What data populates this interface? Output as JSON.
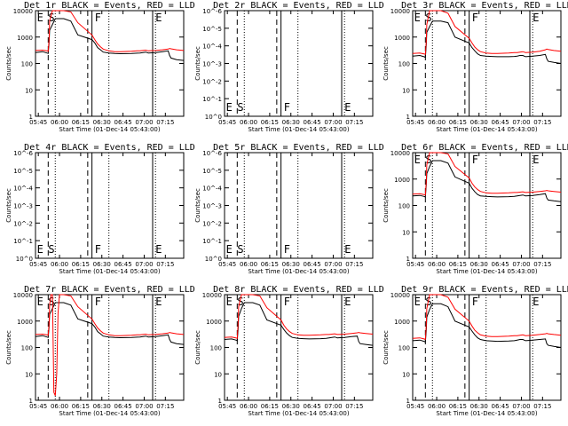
{
  "figure": {
    "start_time_label": "Start Time (01-Dec-14 05:43:00)",
    "ylabel": "Counts/sec",
    "x_ticks": [
      "05:45",
      "06:00",
      "06:15",
      "06:30",
      "06:45",
      "07:00",
      "07:15"
    ],
    "y_ticks": [
      "1",
      "10",
      "100",
      "1000",
      "10000"
    ],
    "y_ticks_empty": [
      "10^0",
      "10^-1",
      "10^-2",
      "10^-3",
      "10^-4",
      "10^-5",
      "10^-6"
    ],
    "colors": {
      "events": "#000000",
      "lld": "#ff0000",
      "background": "#ffffff"
    }
  },
  "chart_data": [
    {
      "id": "1r",
      "type": "line",
      "title": "Det 1r BLACK = Events, RED = LLD",
      "empty": false,
      "markers": [
        "E",
        "S",
        "F",
        "E"
      ],
      "xlabel": "Start Time (01-Dec-14 05:43:00)",
      "ylabel": "Counts/sec",
      "ylog": true,
      "series": [
        {
          "name": "Events",
          "color": "#000000",
          "x": [
            0,
            5,
            8,
            9,
            9.6,
            10,
            12,
            14,
            15,
            20,
            25,
            30,
            40,
            42,
            44,
            46,
            48,
            52,
            56,
            60,
            68,
            72,
            74,
            76,
            78,
            80,
            85,
            90,
            94,
            95,
            96,
            100,
            105
          ],
          "y": [
            260,
            280,
            250,
            240,
            600,
            1800,
            3000,
            5000,
            5000,
            5000,
            4000,
            1200,
            800,
            600,
            400,
            330,
            270,
            250,
            240,
            235,
            240,
            245,
            250,
            260,
            270,
            250,
            260,
            280,
            300,
            200,
            160,
            140,
            130
          ]
        },
        {
          "name": "LLD",
          "color": "#ff0000",
          "x": [
            0,
            5,
            8,
            9,
            9.6,
            10,
            12,
            14,
            15,
            20,
            25,
            30,
            40,
            42,
            44,
            46,
            48,
            52,
            56,
            60,
            68,
            72,
            74,
            76,
            78,
            80,
            85,
            90,
            94,
            95,
            96,
            100,
            105
          ],
          "y": [
            310,
            320,
            300,
            290,
            800,
            4000,
            10000,
            10000,
            10000,
            10000,
            9000,
            3500,
            1200,
            800,
            550,
            430,
            350,
            300,
            280,
            280,
            290,
            300,
            300,
            310,
            320,
            300,
            310,
            330,
            350,
            370,
            360,
            330,
            310
          ]
        }
      ]
    },
    {
      "id": "2r",
      "type": "line",
      "title": "Det 2r BLACK = Events, RED = LLD",
      "empty": true,
      "markers": [
        "E",
        "S",
        "F",
        "E"
      ],
      "xlabel": "Start Time (01-Dec-14 05:43:00)",
      "ylabel": "Counts/sec",
      "ylog": true,
      "series": []
    },
    {
      "id": "3r",
      "type": "line",
      "title": "Det 3r BLACK = Events, RED = LLD",
      "empty": false,
      "markers": [
        "E",
        "S",
        "F",
        "E"
      ],
      "xlabel": "Start Time (01-Dec-14 05:43:00)",
      "ylabel": "Counts/sec",
      "ylog": true,
      "series": [
        {
          "name": "Events",
          "color": "#000000",
          "x": [
            0,
            5,
            8,
            9,
            9.6,
            10,
            12,
            14,
            15,
            20,
            25,
            30,
            40,
            42,
            44,
            46,
            48,
            52,
            56,
            60,
            68,
            72,
            74,
            76,
            78,
            80,
            85,
            90,
            94,
            95,
            96,
            100,
            105
          ],
          "y": [
            190,
            200,
            180,
            170,
            500,
            1500,
            2500,
            4000,
            4000,
            4000,
            3500,
            1000,
            600,
            400,
            300,
            230,
            200,
            190,
            185,
            180,
            180,
            185,
            190,
            200,
            200,
            180,
            190,
            200,
            220,
            150,
            120,
            110,
            100
          ]
        },
        {
          "name": "LLD",
          "color": "#ff0000",
          "x": [
            0,
            5,
            8,
            9,
            9.6,
            10,
            12,
            14,
            15,
            20,
            25,
            30,
            40,
            42,
            44,
            46,
            48,
            52,
            56,
            60,
            68,
            72,
            74,
            76,
            78,
            80,
            85,
            90,
            94,
            95,
            96,
            100,
            105
          ],
          "y": [
            240,
            250,
            230,
            220,
            700,
            3000,
            10000,
            10000,
            10000,
            10000,
            8000,
            2500,
            900,
            600,
            420,
            330,
            280,
            250,
            240,
            240,
            250,
            260,
            260,
            270,
            280,
            260,
            270,
            290,
            330,
            350,
            340,
            310,
            290
          ]
        }
      ]
    },
    {
      "id": "4r",
      "type": "line",
      "title": "Det 4r BLACK = Events, RED = LLD",
      "empty": true,
      "markers": [
        "E",
        "S",
        "F",
        "E"
      ],
      "xlabel": "Start Time (01-Dec-14 05:43:00)",
      "ylabel": "Counts/sec",
      "ylog": true,
      "series": []
    },
    {
      "id": "5r",
      "type": "line",
      "title": "Det 5r BLACK = Events, RED = LLD",
      "empty": true,
      "markers": [
        "E",
        "S",
        "F",
        "E"
      ],
      "xlabel": "Start Time (01-Dec-14 05:43:00)",
      "ylabel": "Counts/sec",
      "ylog": true,
      "series": []
    },
    {
      "id": "6r",
      "type": "line",
      "title": "Det 6r BLACK = Events, RED = LLD",
      "empty": false,
      "markers": [
        "E",
        "S",
        "F",
        "E"
      ],
      "xlabel": "Start Time (01-Dec-14 05:43:00)",
      "ylabel": "Counts/sec",
      "ylog": true,
      "series": [
        {
          "name": "Events",
          "color": "#000000",
          "x": [
            0,
            5,
            8,
            9,
            9.6,
            10,
            12,
            14,
            15,
            20,
            25,
            30,
            40,
            42,
            44,
            46,
            48,
            52,
            56,
            60,
            68,
            72,
            74,
            76,
            78,
            80,
            85,
            90,
            94,
            95,
            96,
            100,
            105
          ],
          "y": [
            230,
            240,
            220,
            210,
            600,
            1600,
            3000,
            5000,
            5000,
            5000,
            4000,
            1200,
            700,
            450,
            330,
            260,
            230,
            220,
            215,
            210,
            215,
            220,
            230,
            240,
            250,
            230,
            240,
            260,
            280,
            190,
            160,
            150,
            140
          ]
        },
        {
          "name": "LLD",
          "color": "#ff0000",
          "x": [
            0,
            5,
            8,
            9,
            9.6,
            10,
            12,
            14,
            15,
            20,
            25,
            30,
            40,
            42,
            44,
            46,
            48,
            52,
            56,
            60,
            68,
            72,
            74,
            76,
            78,
            80,
            85,
            90,
            94,
            95,
            96,
            100,
            105
          ],
          "y": [
            270,
            280,
            260,
            250,
            800,
            3500,
            10000,
            10000,
            10000,
            10000,
            9000,
            3000,
            1100,
            700,
            500,
            400,
            340,
            300,
            290,
            290,
            300,
            310,
            310,
            320,
            330,
            310,
            320,
            340,
            360,
            370,
            360,
            340,
            320
          ]
        }
      ]
    },
    {
      "id": "7r",
      "type": "line",
      "title": "Det 7r BLACK = Events, RED = LLD",
      "empty": false,
      "markers": [
        "E",
        "S",
        "F",
        "E"
      ],
      "xlabel": "Start Time (01-Dec-14 05:43:00)",
      "ylabel": "Counts/sec",
      "ylog": true,
      "series": [
        {
          "name": "Events",
          "color": "#000000",
          "x": [
            0,
            5,
            8,
            9,
            9.6,
            10,
            12,
            14,
            15,
            20,
            25,
            30,
            40,
            42,
            44,
            46,
            48,
            52,
            56,
            60,
            68,
            72,
            74,
            76,
            78,
            80,
            85,
            90,
            94,
            95,
            96,
            100,
            105
          ],
          "y": [
            260,
            280,
            250,
            240,
            600,
            1800,
            3000,
            5000,
            5000,
            5000,
            4000,
            1200,
            800,
            600,
            400,
            330,
            270,
            250,
            240,
            235,
            240,
            245,
            250,
            260,
            270,
            250,
            260,
            280,
            300,
            200,
            160,
            140,
            130
          ]
        },
        {
          "name": "LLD",
          "color": "#ff0000",
          "x": [
            0,
            5,
            8,
            9,
            9.6,
            10,
            11,
            12,
            13,
            14,
            15,
            16,
            17,
            18,
            20,
            25,
            30,
            40,
            42,
            44,
            46,
            48,
            52,
            56,
            60,
            68,
            72,
            74,
            76,
            78,
            80,
            85,
            90,
            94,
            95,
            96,
            100,
            105
          ],
          "y": [
            310,
            320,
            300,
            290,
            800,
            4000,
            10000,
            10000,
            2,
            1.5,
            10,
            2000,
            10000,
            10000,
            10000,
            9000,
            3500,
            1200,
            800,
            550,
            430,
            350,
            300,
            280,
            280,
            290,
            300,
            300,
            310,
            320,
            300,
            310,
            330,
            350,
            370,
            360,
            330,
            310
          ]
        }
      ]
    },
    {
      "id": "8r",
      "type": "line",
      "title": "Det 8r BLACK = Events, RED = LLD",
      "empty": false,
      "markers": [
        "E",
        "S",
        "F",
        "E"
      ],
      "xlabel": "Start Time (01-Dec-14 05:43:00)",
      "ylabel": "Counts/sec",
      "ylog": true,
      "series": [
        {
          "name": "Events",
          "color": "#000000",
          "x": [
            0,
            5,
            8,
            9,
            9.6,
            10,
            12,
            14,
            15,
            20,
            25,
            30,
            40,
            42,
            44,
            46,
            48,
            52,
            56,
            60,
            68,
            72,
            74,
            76,
            78,
            80,
            85,
            90,
            94,
            95,
            96,
            100,
            105
          ],
          "y": [
            200,
            210,
            190,
            180,
            500,
            1500,
            3000,
            5000,
            5000,
            5000,
            4000,
            1100,
            700,
            480,
            350,
            280,
            240,
            220,
            215,
            210,
            215,
            220,
            230,
            240,
            250,
            230,
            240,
            260,
            270,
            170,
            140,
            130,
            120
          ]
        },
        {
          "name": "LLD",
          "color": "#ff0000",
          "x": [
            0,
            5,
            8,
            9,
            9.6,
            10,
            12,
            14,
            15,
            20,
            25,
            30,
            40,
            42,
            44,
            46,
            48,
            52,
            56,
            60,
            68,
            72,
            74,
            76,
            78,
            80,
            85,
            90,
            94,
            95,
            96,
            100,
            105
          ],
          "y": [
            240,
            250,
            230,
            220,
            800,
            3500,
            10000,
            10000,
            10000,
            10000,
            9000,
            3200,
            1100,
            700,
            500,
            400,
            340,
            300,
            290,
            290,
            300,
            310,
            310,
            320,
            330,
            310,
            320,
            340,
            360,
            370,
            360,
            340,
            320
          ]
        }
      ]
    },
    {
      "id": "9r",
      "type": "line",
      "title": "Det 9r BLACK = Events, RED = LLD",
      "empty": false,
      "markers": [
        "E",
        "S",
        "F",
        "E"
      ],
      "xlabel": "Start Time (01-Dec-14 05:43:00)",
      "ylabel": "Counts/sec",
      "ylog": true,
      "series": [
        {
          "name": "Events",
          "color": "#000000",
          "x": [
            0,
            5,
            8,
            9,
            9.6,
            10,
            12,
            14,
            15,
            20,
            25,
            30,
            40,
            42,
            44,
            46,
            48,
            52,
            56,
            60,
            68,
            72,
            74,
            76,
            78,
            80,
            85,
            90,
            94,
            95,
            96,
            100,
            105
          ],
          "y": [
            180,
            190,
            170,
            160,
            450,
            1400,
            2800,
            4500,
            4500,
            4500,
            3500,
            1000,
            600,
            420,
            300,
            230,
            200,
            180,
            175,
            170,
            175,
            180,
            190,
            200,
            200,
            180,
            190,
            200,
            210,
            140,
            120,
            110,
            100
          ]
        },
        {
          "name": "LLD",
          "color": "#ff0000",
          "x": [
            0,
            5,
            8,
            9,
            9.6,
            10,
            12,
            14,
            15,
            20,
            25,
            30,
            40,
            42,
            44,
            46,
            48,
            52,
            56,
            60,
            68,
            72,
            74,
            76,
            78,
            80,
            85,
            90,
            94,
            95,
            96,
            100,
            105
          ],
          "y": [
            220,
            230,
            210,
            200,
            700,
            3000,
            10000,
            10000,
            10000,
            10000,
            8000,
            2800,
            1000,
            650,
            450,
            360,
            300,
            270,
            260,
            260,
            270,
            280,
            280,
            290,
            300,
            280,
            290,
            310,
            330,
            340,
            330,
            310,
            290
          ]
        }
      ]
    }
  ]
}
